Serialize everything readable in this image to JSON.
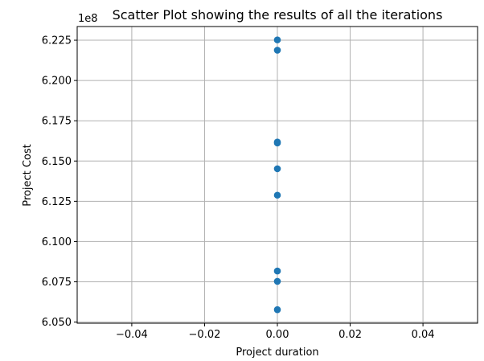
{
  "chart_data": {
    "type": "scatter",
    "title": "Scatter Plot showing the results of all the iterations",
    "xlabel": "Project duration",
    "ylabel": "Project Cost",
    "y_offset_label": "1e8",
    "xlim": [
      -0.055,
      0.055
    ],
    "ylim": [
      6.0493,
      6.2335
    ],
    "x_ticks": [
      -0.04,
      -0.02,
      0.0,
      0.02,
      0.04
    ],
    "x_tick_labels": [
      "−0.04",
      "−0.02",
      "0.00",
      "0.02",
      "0.04"
    ],
    "y_ticks": [
      6.05,
      6.075,
      6.1,
      6.125,
      6.15,
      6.175,
      6.2,
      6.225
    ],
    "y_tick_labels": [
      "6.050",
      "6.075",
      "6.100",
      "6.125",
      "6.150",
      "6.175",
      "6.200",
      "6.225"
    ],
    "grid": true,
    "marker_color": "#1f77b4",
    "points": [
      {
        "x": 0,
        "y": 6.2252
      },
      {
        "x": 0,
        "y": 6.2188
      },
      {
        "x": 0,
        "y": 6.1618
      },
      {
        "x": 0,
        "y": 6.1612
      },
      {
        "x": 0,
        "y": 6.1452
      },
      {
        "x": 0,
        "y": 6.1288
      },
      {
        "x": 0,
        "y": 6.0817
      },
      {
        "x": 0,
        "y": 6.0753
      },
      {
        "x": 0,
        "y": 6.0577
      }
    ]
  }
}
